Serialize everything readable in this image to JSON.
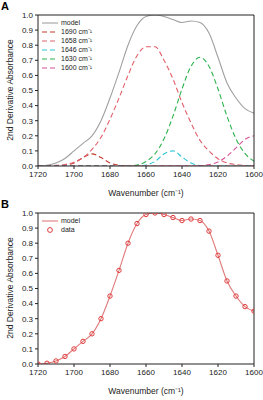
{
  "chart_data": [
    {
      "type": "line",
      "title": "A",
      "xlabel": "Wavenumber (cm⁻¹)",
      "ylabel": "2nd Derivative Absorbance",
      "x": [
        1720,
        1715,
        1710,
        1705,
        1700,
        1695,
        1690,
        1685,
        1680,
        1675,
        1670,
        1665,
        1660,
        1655,
        1650,
        1645,
        1640,
        1635,
        1630,
        1625,
        1620,
        1615,
        1610,
        1605,
        1600
      ],
      "xlim": [
        1720,
        1600
      ],
      "xticks": [
        1720,
        1700,
        1680,
        1660,
        1640,
        1620,
        1600
      ],
      "ylim": [
        0,
        1
      ],
      "yticks": [
        {
          "value": 0,
          "label": "0.0"
        },
        {
          "value": 0.1,
          "label": "0.1"
        },
        {
          "value": 0.2,
          "label": "0.2"
        },
        {
          "value": 0.3,
          "label": "0.3"
        },
        {
          "value": 0.4,
          "label": "0.4"
        },
        {
          "value": 0.5,
          "label": "0.5"
        },
        {
          "value": 0.6,
          "label": "0.6"
        },
        {
          "value": 0.7,
          "label": "0.7"
        },
        {
          "value": 0.8,
          "label": "0.8"
        },
        {
          "value": 0.9,
          "label": "0.9"
        },
        {
          "value": 1,
          "label": "1.0"
        }
      ],
      "grid": false,
      "legend": "top-left",
      "series": [
        {
          "name": "model",
          "color": "#a0a0a0",
          "line_style": "solid",
          "values": [
            0,
            0.005,
            0.02,
            0.05,
            0.1,
            0.15,
            0.2,
            0.3,
            0.45,
            0.62,
            0.8,
            0.93,
            0.99,
            1.0,
            0.99,
            0.97,
            0.95,
            0.96,
            0.95,
            0.88,
            0.72,
            0.55,
            0.45,
            0.38,
            0.35
          ]
        },
        {
          "name": "1690 cm⁻¹",
          "color": "#c0392b",
          "line_style": "dashed",
          "values": [
            0,
            0,
            0,
            0.005,
            0.02,
            0.056,
            0.08,
            0.056,
            0.02,
            0.005,
            0,
            0,
            0,
            0,
            0,
            0,
            0,
            0,
            0,
            0,
            0,
            0,
            0,
            0,
            0
          ]
        },
        {
          "name": "1658 cm⁻¹",
          "color": "#e0606a",
          "line_style": "dashed",
          "values": [
            0,
            0,
            0.004,
            0.01,
            0.025,
            0.055,
            0.11,
            0.19,
            0.31,
            0.45,
            0.6,
            0.73,
            0.79,
            0.79,
            0.7,
            0.576,
            0.42,
            0.285,
            0.17,
            0.1,
            0.048,
            0.02,
            0.01,
            0.004,
            0.001
          ]
        },
        {
          "name": "1646 cm⁻¹",
          "color": "#33c6d6",
          "line_style": "dashed",
          "values": [
            0,
            0,
            0,
            0,
            0,
            0,
            0,
            0,
            0,
            0,
            0,
            0,
            0.007,
            0.03,
            0.08,
            0.1,
            0.06,
            0.02,
            0.003,
            0,
            0,
            0,
            0,
            0,
            0
          ]
        },
        {
          "name": "1630 cm⁻¹",
          "color": "#2bb24c",
          "line_style": "dashed",
          "values": [
            0,
            0,
            0,
            0,
            0,
            0,
            0,
            0,
            0,
            0,
            0,
            0.006,
            0.03,
            0.08,
            0.18,
            0.33,
            0.51,
            0.66,
            0.72,
            0.66,
            0.51,
            0.33,
            0.18,
            0.083,
            0.032
          ]
        },
        {
          "name": "1600 cm⁻¹",
          "color": "#d6559a",
          "line_style": "dashed",
          "values": [
            0,
            0,
            0,
            0,
            0,
            0,
            0,
            0,
            0,
            0,
            0,
            0,
            0,
            0,
            0,
            0,
            0,
            0,
            0.002,
            0.009,
            0.027,
            0.065,
            0.12,
            0.176,
            0.2
          ]
        }
      ]
    },
    {
      "type": "line",
      "title": "B",
      "xlabel": "Wavenumber (cm⁻¹)",
      "ylabel": "2nd Derivative Absorbance",
      "x": [
        1720,
        1715,
        1710,
        1705,
        1700,
        1695,
        1690,
        1685,
        1680,
        1675,
        1670,
        1665,
        1660,
        1655,
        1650,
        1645,
        1640,
        1635,
        1630,
        1625,
        1620,
        1615,
        1610,
        1605,
        1600
      ],
      "xlim": [
        1720,
        1600
      ],
      "xticks": [
        1720,
        1700,
        1680,
        1660,
        1640,
        1620,
        1600
      ],
      "ylim": [
        0,
        1
      ],
      "yticks": [
        {
          "value": 0,
          "label": "0.0"
        },
        {
          "value": 0.1,
          "label": "0.1"
        },
        {
          "value": 0.2,
          "label": "0.2"
        },
        {
          "value": 0.3,
          "label": "0.3"
        },
        {
          "value": 0.4,
          "label": "0.4"
        },
        {
          "value": 0.5,
          "label": "0.5"
        },
        {
          "value": 0.6,
          "label": "0.6"
        },
        {
          "value": 0.7,
          "label": "0.7"
        },
        {
          "value": 0.8,
          "label": "0.8"
        },
        {
          "value": 0.9,
          "label": "0.9"
        },
        {
          "value": 1,
          "label": "1.0"
        }
      ],
      "grid": false,
      "legend": "top-left",
      "series": [
        {
          "name": "model",
          "color": "#e07a7a",
          "line_style": "solid",
          "values": [
            0,
            0.005,
            0.02,
            0.05,
            0.1,
            0.15,
            0.2,
            0.3,
            0.45,
            0.62,
            0.8,
            0.93,
            0.99,
            1.0,
            0.99,
            0.97,
            0.95,
            0.96,
            0.95,
            0.88,
            0.72,
            0.55,
            0.45,
            0.38,
            0.35
          ]
        },
        {
          "name": "data",
          "color": "#e03c3c",
          "line_style": "none",
          "marker": "circle",
          "values": [
            0,
            0.005,
            0.02,
            0.05,
            0.1,
            0.15,
            0.2,
            0.3,
            0.45,
            0.62,
            0.8,
            0.93,
            0.99,
            1.0,
            0.99,
            0.97,
            0.95,
            0.96,
            0.95,
            0.88,
            0.72,
            0.55,
            0.45,
            0.38,
            0.35
          ]
        }
      ]
    }
  ]
}
